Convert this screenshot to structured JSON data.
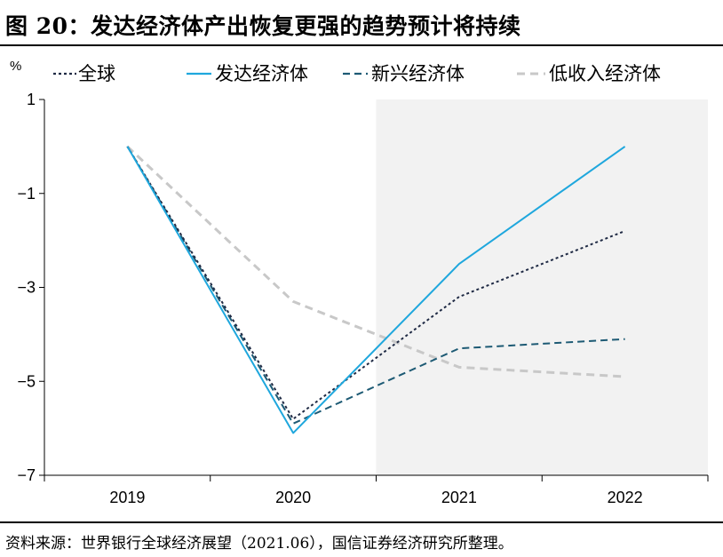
{
  "title": "图 20：发达经济体产出恢复更强的趋势预计将持续",
  "source": "资料来源：世界银行全球经济展望（2021.06），国信证券经济研究所整理。",
  "chart_data": {
    "type": "line",
    "unit": "%",
    "categories": [
      "2019",
      "2020",
      "2021",
      "2022"
    ],
    "ylim": [
      -7,
      1
    ],
    "yticks": [
      1,
      -1,
      -3,
      -5,
      -7
    ],
    "ytick_labels": [
      "1",
      "−1",
      "−3",
      "−5",
      "−7"
    ],
    "shaded_region": {
      "from": "2021",
      "to": "2022",
      "color": "#f2f2f2"
    },
    "legend_position": "top",
    "series": [
      {
        "name": "全球",
        "values": [
          0,
          -5.8,
          -3.2,
          -1.8
        ],
        "color": "#1f2a44",
        "dash": "3,3",
        "width": 2
      },
      {
        "name": "发达经济体",
        "values": [
          0,
          -6.1,
          -2.5,
          0
        ],
        "color": "#1fa7dd",
        "dash": "",
        "width": 2
      },
      {
        "name": "新兴经济体",
        "values": [
          0,
          -5.9,
          -4.3,
          -4.1
        ],
        "color": "#1d5a74",
        "dash": "8,5",
        "width": 2
      },
      {
        "name": "低收入经济体",
        "values": [
          0,
          -3.3,
          -4.7,
          -4.9
        ],
        "color": "#c8c8c8",
        "dash": "9,6",
        "width": 3
      }
    ]
  }
}
